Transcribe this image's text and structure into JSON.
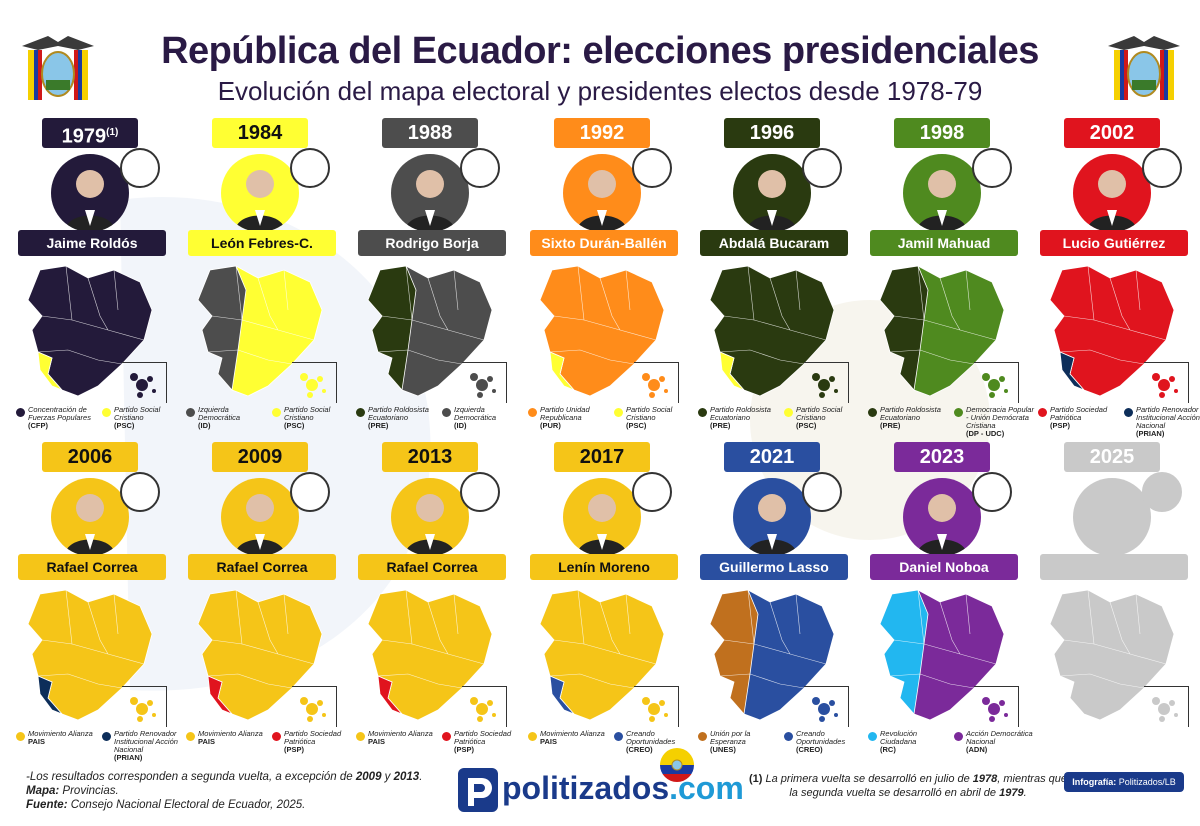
{
  "header": {
    "title": "República del Ecuador: elecciones presidenciales",
    "subtitle": "Evolución del mapa electoral y presidentes electos desde 1978-79"
  },
  "elections": [
    {
      "year": "1979",
      "footnote": "(1)",
      "president": "Jaime Roldós",
      "party_logo": "CFP",
      "color": "#231a3a",
      "year_text_dark": true,
      "name_text_dark": false,
      "legend": [
        {
          "name": "Concentración de Fuerzas Populares",
          "abbr": "(CFP)",
          "color": "#231a3a"
        },
        {
          "name": "Partido Social Cristiano",
          "abbr": "(PSC)",
          "color": "#ffff33"
        }
      ]
    },
    {
      "year": "1984",
      "footnote": "",
      "president": "León Febres-C.",
      "party_logo": "PSC-logo",
      "color": "#ffff33",
      "year_text_dark": false,
      "name_text_dark": true,
      "legend": [
        {
          "name": "Izquierda Democrática",
          "abbr": "(ID)",
          "color": "#4d4d4d"
        },
        {
          "name": "Partido Social Cristiano",
          "abbr": "(PSC)",
          "color": "#ffff33"
        }
      ]
    },
    {
      "year": "1988",
      "footnote": "",
      "president": "Rodrigo Borja",
      "party_logo": "ID",
      "color": "#4d4d4d",
      "year_text_dark": true,
      "name_text_dark": false,
      "legend": [
        {
          "name": "Partido Roldosista Ecuatoriano",
          "abbr": "(PRE)",
          "color": "#2a3a10"
        },
        {
          "name": "Izquierda Democrática",
          "abbr": "(ID)",
          "color": "#4d4d4d"
        }
      ]
    },
    {
      "year": "1992",
      "footnote": "",
      "president": "Sixto Durán-Ballén",
      "party_logo": "UR",
      "color": "#ff8c1a",
      "year_text_dark": true,
      "name_text_dark": false,
      "legend": [
        {
          "name": "Partido Unidad Republicana",
          "abbr": "(PUR)",
          "color": "#ff8c1a"
        },
        {
          "name": "Partido Social Cristiano",
          "abbr": "(PSC)",
          "color": "#ffff33"
        }
      ]
    },
    {
      "year": "1996",
      "footnote": "",
      "president": "Abdalá Bucaram",
      "party_logo": "PRE-logo",
      "color": "#2a3a10",
      "year_text_dark": true,
      "name_text_dark": false,
      "legend": [
        {
          "name": "Partido Roldosista Ecuatoriano",
          "abbr": "(PRE)",
          "color": "#2a3a10"
        },
        {
          "name": "Partido Social Cristiano",
          "abbr": "(PSC)",
          "color": "#ffff33"
        }
      ]
    },
    {
      "year": "1998",
      "footnote": "",
      "president": "Jamil Mahuad",
      "party_logo": "DP",
      "color": "#4f8a1f",
      "year_text_dark": true,
      "name_text_dark": false,
      "legend": [
        {
          "name": "Partido Roldosista Ecuatoriano",
          "abbr": "(PRE)",
          "color": "#2a3a10"
        },
        {
          "name": "Democracia Popular - Unión Demócrata Cristiana",
          "abbr": "(DP - UDC)",
          "color": "#4f8a1f"
        }
      ]
    },
    {
      "year": "2002",
      "footnote": "",
      "president": "Lucio Gutiérrez",
      "party_logo": "psp3",
      "color": "#e0141e",
      "year_text_dark": true,
      "name_text_dark": false,
      "legend": [
        {
          "name": "Partido Sociedad Patriótica",
          "abbr": "(PSP)",
          "color": "#e0141e"
        },
        {
          "name": "Partido Renovador Institucional Acción Nacional",
          "abbr": "(PRIAN)",
          "color": "#0d2e5a"
        }
      ]
    },
    {
      "year": "2006",
      "footnote": "",
      "president": "Rafael Correa",
      "party_logo": "35 PAIS",
      "color": "#f5c518",
      "year_text_dark": false,
      "name_text_dark": true,
      "legend": [
        {
          "name": "Movimiento Alianza",
          "abbr": "PAIS",
          "color": "#f5c518"
        },
        {
          "name": "Partido Renovador Institucional Acción Nacional",
          "abbr": "(PRIAN)",
          "color": "#0d2e5a"
        }
      ]
    },
    {
      "year": "2009",
      "footnote": "",
      "president": "Rafael Correa",
      "party_logo": "35 PAIS",
      "color": "#f5c518",
      "year_text_dark": false,
      "name_text_dark": true,
      "legend": [
        {
          "name": "Movimiento Alianza",
          "abbr": "PAIS",
          "color": "#f5c518"
        },
        {
          "name": "Partido Sociedad Patriótica",
          "abbr": "(PSP)",
          "color": "#e0141e"
        }
      ]
    },
    {
      "year": "2013",
      "footnote": "",
      "president": "Rafael Correa",
      "party_logo": "35 PAIS",
      "color": "#f5c518",
      "year_text_dark": false,
      "name_text_dark": true,
      "legend": [
        {
          "name": "Movimiento Alianza",
          "abbr": "PAIS",
          "color": "#f5c518"
        },
        {
          "name": "Partido Sociedad Patriótica",
          "abbr": "(PSP)",
          "color": "#e0141e"
        }
      ]
    },
    {
      "year": "2017",
      "footnote": "",
      "president": "Lenín Moreno",
      "party_logo": "35 PAIS",
      "color": "#f5c518",
      "year_text_dark": false,
      "name_text_dark": true,
      "legend": [
        {
          "name": "Movimiento Alianza",
          "abbr": "PAIS",
          "color": "#f5c518"
        },
        {
          "name": "Creando Oportunidades",
          "abbr": "(CREO)",
          "color": "#2a4fa0"
        }
      ]
    },
    {
      "year": "2021",
      "footnote": "",
      "president": "Guillermo Lasso",
      "party_logo": "CREO",
      "color": "#2a4fa0",
      "year_text_dark": true,
      "name_text_dark": false,
      "legend": [
        {
          "name": "Unión por la Esperanza",
          "abbr": "(UNES)",
          "color": "#c0701e"
        },
        {
          "name": "Creando Oportunidades",
          "abbr": "(CREO)",
          "color": "#2a4fa0"
        }
      ]
    },
    {
      "year": "2023",
      "footnote": "",
      "president": "Daniel Noboa",
      "party_logo": "ADN",
      "color": "#7b2a9a",
      "year_text_dark": true,
      "name_text_dark": false,
      "legend": [
        {
          "name": "Revolución Ciudadana",
          "abbr": "(RC)",
          "color": "#22b7f0"
        },
        {
          "name": "Acción Democrática Nacional",
          "abbr": "(ADN)",
          "color": "#7b2a9a"
        }
      ]
    },
    {
      "year": "2025",
      "footnote": "",
      "president": "",
      "party_logo": "",
      "color": "#c9c9c9",
      "year_text_dark": true,
      "name_text_dark": false,
      "legend": []
    }
  ],
  "footer": {
    "note_line1_a": "-Los resultados corresponden a segunda vuelta, a excepción de ",
    "note_line1_b": "2009",
    "note_line1_c": " y ",
    "note_line1_d": "2013",
    "note_line1_e": ".",
    "map_label": "Mapa:",
    "map_value": " Provincias.",
    "source_label": "Fuente:",
    "source_value": " Consejo Nacional Electoral de Ecuador, 2025.",
    "brand_main": "politizados",
    "brand_tld": ".com",
    "footnote_ref": "(1)",
    "footnote_a": " La primera vuelta se desarrolló en julio de ",
    "footnote_b": "1978",
    "footnote_c": ", mientras que la segunda vuelta se desarrolló en abril de ",
    "footnote_d": "1979",
    "footnote_e": ".",
    "credit_label": "Infografía:",
    "credit_value": " Politizados/LB"
  }
}
